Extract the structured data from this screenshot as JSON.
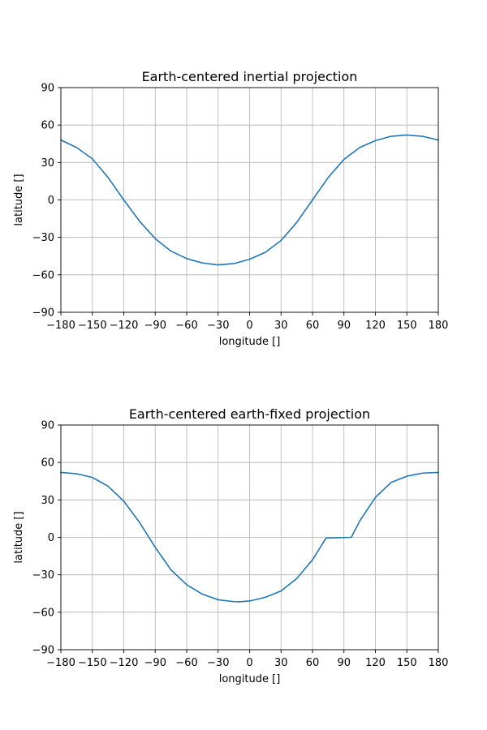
{
  "chart_data": [
    {
      "type": "line",
      "title": "Earth-centered inertial projection",
      "xlabel": "longitude []",
      "ylabel": "latitude []",
      "xlim": [
        -180,
        180
      ],
      "ylim": [
        -90,
        90
      ],
      "xticks": [
        -180,
        -150,
        -120,
        -90,
        -60,
        -30,
        0,
        30,
        60,
        90,
        120,
        150,
        180
      ],
      "yticks": [
        -90,
        -60,
        -30,
        0,
        30,
        60,
        90
      ],
      "grid": true,
      "color": "#1f77b4",
      "series": [
        {
          "x": [
            -180,
            -165,
            -150,
            -135,
            -120,
            -105,
            -90,
            -75,
            -60,
            -45,
            -30,
            -15,
            0,
            15,
            30,
            45,
            60,
            75,
            90,
            105,
            120,
            135,
            150,
            165,
            180
          ],
          "y": [
            48,
            42,
            33,
            18,
            0,
            -17,
            -31,
            -41,
            -47,
            -50.5,
            -52,
            -51,
            -47.5,
            -42,
            -32.5,
            -18,
            0,
            18,
            32.5,
            42,
            47.5,
            51,
            52,
            51,
            48
          ]
        }
      ]
    },
    {
      "type": "line",
      "title": "Earth-centered earth-fixed projection",
      "xlabel": "longitude []",
      "ylabel": "latitude []",
      "xlim": [
        -180,
        180
      ],
      "ylim": [
        -90,
        90
      ],
      "xticks": [
        -180,
        -150,
        -120,
        -90,
        -60,
        -30,
        0,
        30,
        60,
        90,
        120,
        150,
        180
      ],
      "yticks": [
        -90,
        -60,
        -30,
        0,
        30,
        60,
        90
      ],
      "grid": true,
      "color": "#1f77b4",
      "series": [
        {
          "x": [
            -180,
            -165,
            -150,
            -135,
            -120,
            -105,
            -90,
            -75,
            -60,
            -45,
            -30,
            -15,
            -10,
            0,
            15,
            30,
            45,
            60,
            73,
            97,
            105,
            120,
            135,
            150,
            165,
            180
          ],
          "y": [
            52,
            51,
            48,
            41,
            29,
            12,
            -8,
            -26,
            -38,
            -45.5,
            -50,
            -51.5,
            -51.6,
            -51,
            -48,
            -43,
            -33,
            -18,
            -0.5,
            0,
            13,
            32,
            44,
            49,
            51.5,
            52
          ]
        }
      ]
    }
  ]
}
